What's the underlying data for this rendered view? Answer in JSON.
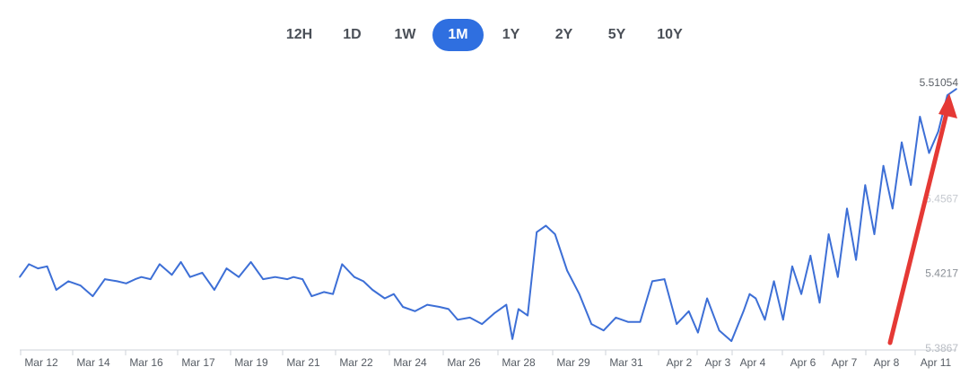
{
  "range_selector": {
    "options": [
      "12H",
      "1D",
      "1W",
      "1M",
      "1Y",
      "2Y",
      "5Y",
      "10Y"
    ],
    "active": "1M"
  },
  "chart_data": {
    "type": "line",
    "x_tick_labels": [
      "Mar 12",
      "Mar 14",
      "Mar 16",
      "Mar 17",
      "Mar 19",
      "Mar 21",
      "Mar 22",
      "Mar 24",
      "Mar 26",
      "Mar 28",
      "Mar 29",
      "Mar 31",
      "Apr 2",
      "Apr 3",
      "Apr 4",
      "Apr 6",
      "Apr 7",
      "Apr 8",
      "Apr 11"
    ],
    "y_tick_labels": [
      "5.3867",
      "5.4217",
      "5.4567",
      "5.51054"
    ],
    "y_tick_values": [
      5.3867,
      5.4217,
      5.4567,
      5.51054
    ],
    "ylim": [
      5.3867,
      5.51054
    ],
    "latest_value_label": "5.51054",
    "line_color": "#3d6fd6",
    "annotation_color": "#e53935",
    "series": [
      {
        "x": [
          0.0,
          0.3,
          0.6,
          0.9,
          1.2,
          1.6,
          2.0,
          2.4,
          2.8,
          3.2,
          3.5,
          3.8,
          4.0,
          4.3,
          4.6,
          5.0,
          5.3,
          5.6,
          6.0,
          6.4,
          6.8,
          7.2,
          7.6,
          8.0,
          8.4,
          8.8,
          9.0,
          9.3,
          9.6,
          10.0,
          10.3,
          10.6,
          11.0,
          11.3,
          11.6,
          12.0,
          12.3,
          12.6,
          13.0,
          13.4,
          13.8,
          14.1,
          14.4,
          14.8,
          15.2,
          15.6,
          16.0,
          16.2,
          16.4,
          16.7,
          17.0,
          17.3,
          17.6,
          18.0,
          18.4,
          18.8,
          19.2,
          19.6,
          20.0,
          20.4,
          20.8,
          21.2,
          21.6,
          22.0,
          22.3,
          22.6,
          23.0,
          23.4,
          23.8,
          24.0,
          24.2,
          24.5,
          24.8,
          25.1,
          25.4,
          25.7,
          26.0,
          26.3,
          26.6,
          26.9,
          27.2,
          27.5,
          27.8,
          28.1,
          28.4,
          28.7,
          29.0,
          29.3,
          29.6,
          29.9,
          30.2,
          30.5,
          30.8
        ],
        "y": [
          5.42,
          5.426,
          5.424,
          5.425,
          5.414,
          5.418,
          5.416,
          5.411,
          5.419,
          5.418,
          5.417,
          5.419,
          5.42,
          5.419,
          5.426,
          5.421,
          5.427,
          5.42,
          5.422,
          5.414,
          5.424,
          5.42,
          5.427,
          5.419,
          5.42,
          5.419,
          5.42,
          5.419,
          5.411,
          5.413,
          5.412,
          5.426,
          5.42,
          5.418,
          5.414,
          5.41,
          5.412,
          5.406,
          5.404,
          5.407,
          5.406,
          5.405,
          5.4,
          5.401,
          5.398,
          5.403,
          5.407,
          5.391,
          5.405,
          5.402,
          5.441,
          5.444,
          5.44,
          5.423,
          5.412,
          5.398,
          5.395,
          5.401,
          5.399,
          5.399,
          5.418,
          5.419,
          5.398,
          5.404,
          5.394,
          5.41,
          5.395,
          5.39,
          5.404,
          5.412,
          5.41,
          5.4,
          5.418,
          5.4,
          5.425,
          5.412,
          5.43,
          5.408,
          5.44,
          5.42,
          5.452,
          5.428,
          5.463,
          5.44,
          5.472,
          5.452,
          5.483,
          5.463,
          5.495,
          5.478,
          5.488,
          5.505,
          5.508
        ]
      }
    ]
  }
}
